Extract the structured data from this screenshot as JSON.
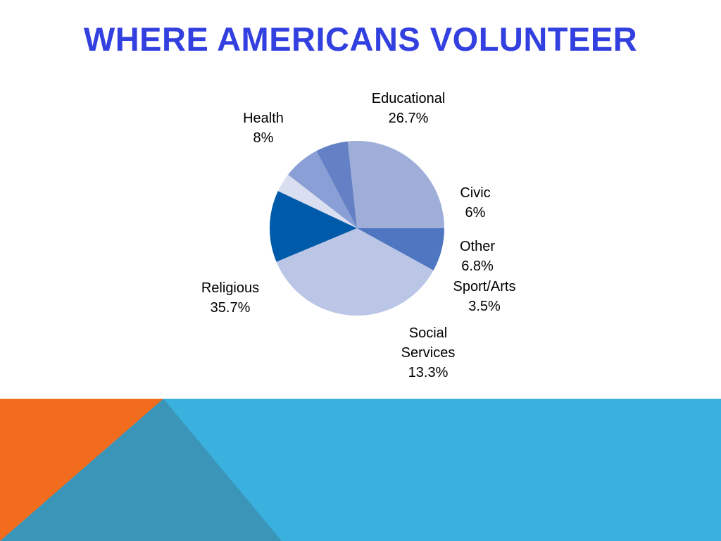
{
  "slide": {
    "title": "WHERE AMERICANS VOLUNTEER"
  },
  "colors": {
    "title": "#3340e0",
    "footer_blue": "#3ab0de",
    "footer_orange": "#f26c1e",
    "footer_teal": "#3a95b8"
  },
  "chart_data": {
    "type": "pie",
    "title": "",
    "slices": [
      {
        "label": [
          "Educational"
        ],
        "value": 26.7,
        "value_label": "26.7%",
        "color": "#9eaed9"
      },
      {
        "label": [
          "Civic"
        ],
        "value": 6.0,
        "value_label": "6%",
        "color": "#6581c5"
      },
      {
        "label": [
          "Other"
        ],
        "value": 6.8,
        "value_label": "6.8%",
        "color": "#8a9fd6"
      },
      {
        "label": [
          "Sport/Arts"
        ],
        "value": 3.5,
        "value_label": "3.5%",
        "color": "#d9def0"
      },
      {
        "label": [
          "Social",
          "Services"
        ],
        "value": 13.3,
        "value_label": "13.3%",
        "color": "#005aaa"
      },
      {
        "label": [
          "Religious"
        ],
        "value": 35.7,
        "value_label": "35.7%",
        "color": "#bbc6e7"
      },
      {
        "label": [
          "Health"
        ],
        "value": 8.0,
        "value_label": "8%",
        "color": "#4f76c0"
      }
    ],
    "start": "3 o'clock, counter-clockwise",
    "legend": "none (labels beside slices)"
  }
}
